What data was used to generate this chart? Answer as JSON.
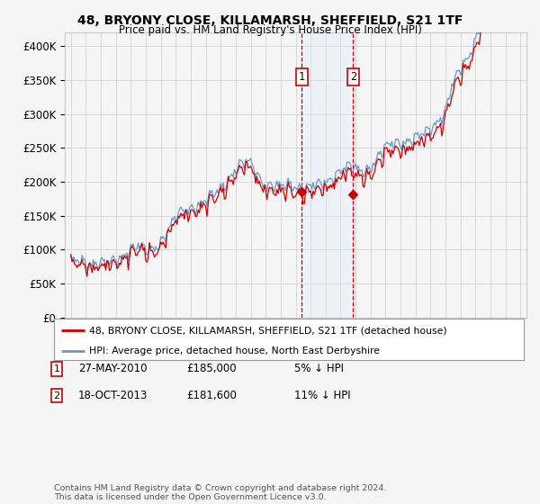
{
  "title1": "48, BRYONY CLOSE, KILLAMARSH, SHEFFIELD, S21 1TF",
  "title2": "Price paid vs. HM Land Registry's House Price Index (HPI)",
  "ylim": [
    0,
    420000
  ],
  "yticks": [
    0,
    50000,
    100000,
    150000,
    200000,
    250000,
    300000,
    350000,
    400000
  ],
  "ytick_labels": [
    "£0",
    "£50K",
    "£100K",
    "£150K",
    "£200K",
    "£250K",
    "£300K",
    "£350K",
    "£400K"
  ],
  "sale1_year": 2010.417,
  "sale1_price": 185000,
  "sale1_label": "27-MAY-2010",
  "sale1_pct": "5% ↓ HPI",
  "sale2_year": 2013.833,
  "sale2_price": 181600,
  "sale2_label": "18-OCT-2013",
  "sale2_pct": "11% ↓ HPI",
  "legend_line1": "48, BRYONY CLOSE, KILLAMARSH, SHEFFIELD, S21 1TF (detached house)",
  "legend_line2": "HPI: Average price, detached house, North East Derbyshire",
  "footnote": "Contains HM Land Registry data © Crown copyright and database right 2024.\nThis data is licensed under the Open Government Licence v3.0.",
  "line_color_property": "#cc0000",
  "line_color_hpi": "#6699cc",
  "sale_marker_color": "#cc0000",
  "shade_color": "#ddeeff",
  "grid_color": "#cccccc",
  "background_color": "#f5f5f5",
  "annotation_box_color": "#cc0000",
  "xlim_left": 1994.6,
  "xlim_right": 2025.4
}
